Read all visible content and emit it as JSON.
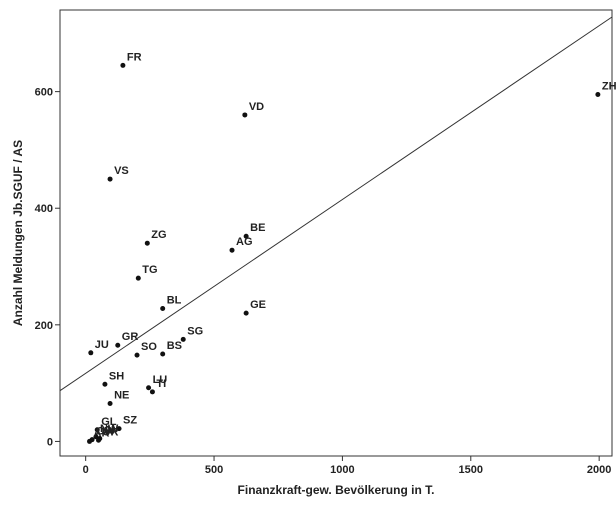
{
  "chart_data": {
    "type": "scatter",
    "xlabel": "Finanzkraft-gew. Bevölkerung in T.",
    "ylabel": "Anzahl Meldungen Jb.SGUF / AS",
    "xlim": [
      -100,
      2050
    ],
    "ylim": [
      -25,
      740
    ],
    "xticks": [
      0,
      500,
      1000,
      1500,
      2000
    ],
    "yticks": [
      0,
      200,
      400,
      600
    ],
    "grid": false,
    "points": [
      {
        "label": "FR",
        "x": 145,
        "y": 645
      },
      {
        "label": "VD",
        "x": 620,
        "y": 560
      },
      {
        "label": "ZH",
        "x": 1995,
        "y": 595
      },
      {
        "label": "VS",
        "x": 95,
        "y": 450
      },
      {
        "label": "ZG",
        "x": 240,
        "y": 340
      },
      {
        "label": "BE",
        "x": 625,
        "y": 352
      },
      {
        "label": "AG",
        "x": 570,
        "y": 328
      },
      {
        "label": "TG",
        "x": 205,
        "y": 280
      },
      {
        "label": "BL",
        "x": 300,
        "y": 228
      },
      {
        "label": "GE",
        "x": 625,
        "y": 220
      },
      {
        "label": "GR",
        "x": 125,
        "y": 165
      },
      {
        "label": "SG",
        "x": 380,
        "y": 175
      },
      {
        "label": "JU",
        "x": 20,
        "y": 152
      },
      {
        "label": "SO",
        "x": 200,
        "y": 148
      },
      {
        "label": "BS",
        "x": 300,
        "y": 150
      },
      {
        "label": "SH",
        "x": 75,
        "y": 98
      },
      {
        "label": "LU",
        "x": 245,
        "y": 92
      },
      {
        "label": "TI",
        "x": 260,
        "y": 85
      },
      {
        "label": "NE",
        "x": 95,
        "y": 65
      },
      {
        "label": "GL",
        "x": 45,
        "y": 20
      },
      {
        "label": "SZ",
        "x": 130,
        "y": 22
      },
      {
        "label": "OW",
        "x": 25,
        "y": 3
      },
      {
        "label": "NW",
        "x": 40,
        "y": 8
      },
      {
        "label": "AR",
        "x": 15,
        "y": 0
      },
      {
        "label": "AI",
        "x": 55,
        "y": 5
      },
      {
        "label": "UR",
        "x": 50,
        "y": 2
      }
    ],
    "fit_line": {
      "x": [
        -100,
        2050
      ],
      "y": [
        87,
        728
      ]
    }
  }
}
